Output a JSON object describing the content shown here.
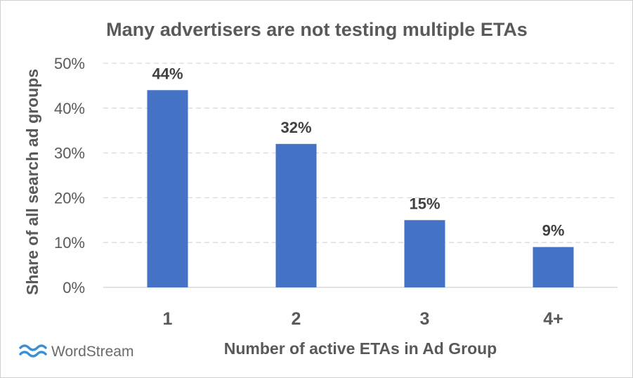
{
  "chart_data": {
    "type": "bar",
    "title": "Many advertisers are not testing multiple ETAs",
    "xlabel": "Number of active ETAs in Ad Group",
    "ylabel": "Share of all search ad groups",
    "categories": [
      "1",
      "2",
      "3",
      "4+"
    ],
    "values": [
      44,
      32,
      15,
      9
    ],
    "data_labels": [
      "44%",
      "32%",
      "15%",
      "9%"
    ],
    "ylim": [
      0,
      50
    ],
    "yticks": [
      0,
      10,
      20,
      30,
      40,
      50
    ],
    "ytick_labels": [
      "0%",
      "10%",
      "20%",
      "30%",
      "40%",
      "50%"
    ],
    "grid": true,
    "legend": "none",
    "bar_color": "#4472c4"
  },
  "logo": {
    "text": "WordStream",
    "icon": "wave-icon",
    "color": "#3a8fd9"
  }
}
